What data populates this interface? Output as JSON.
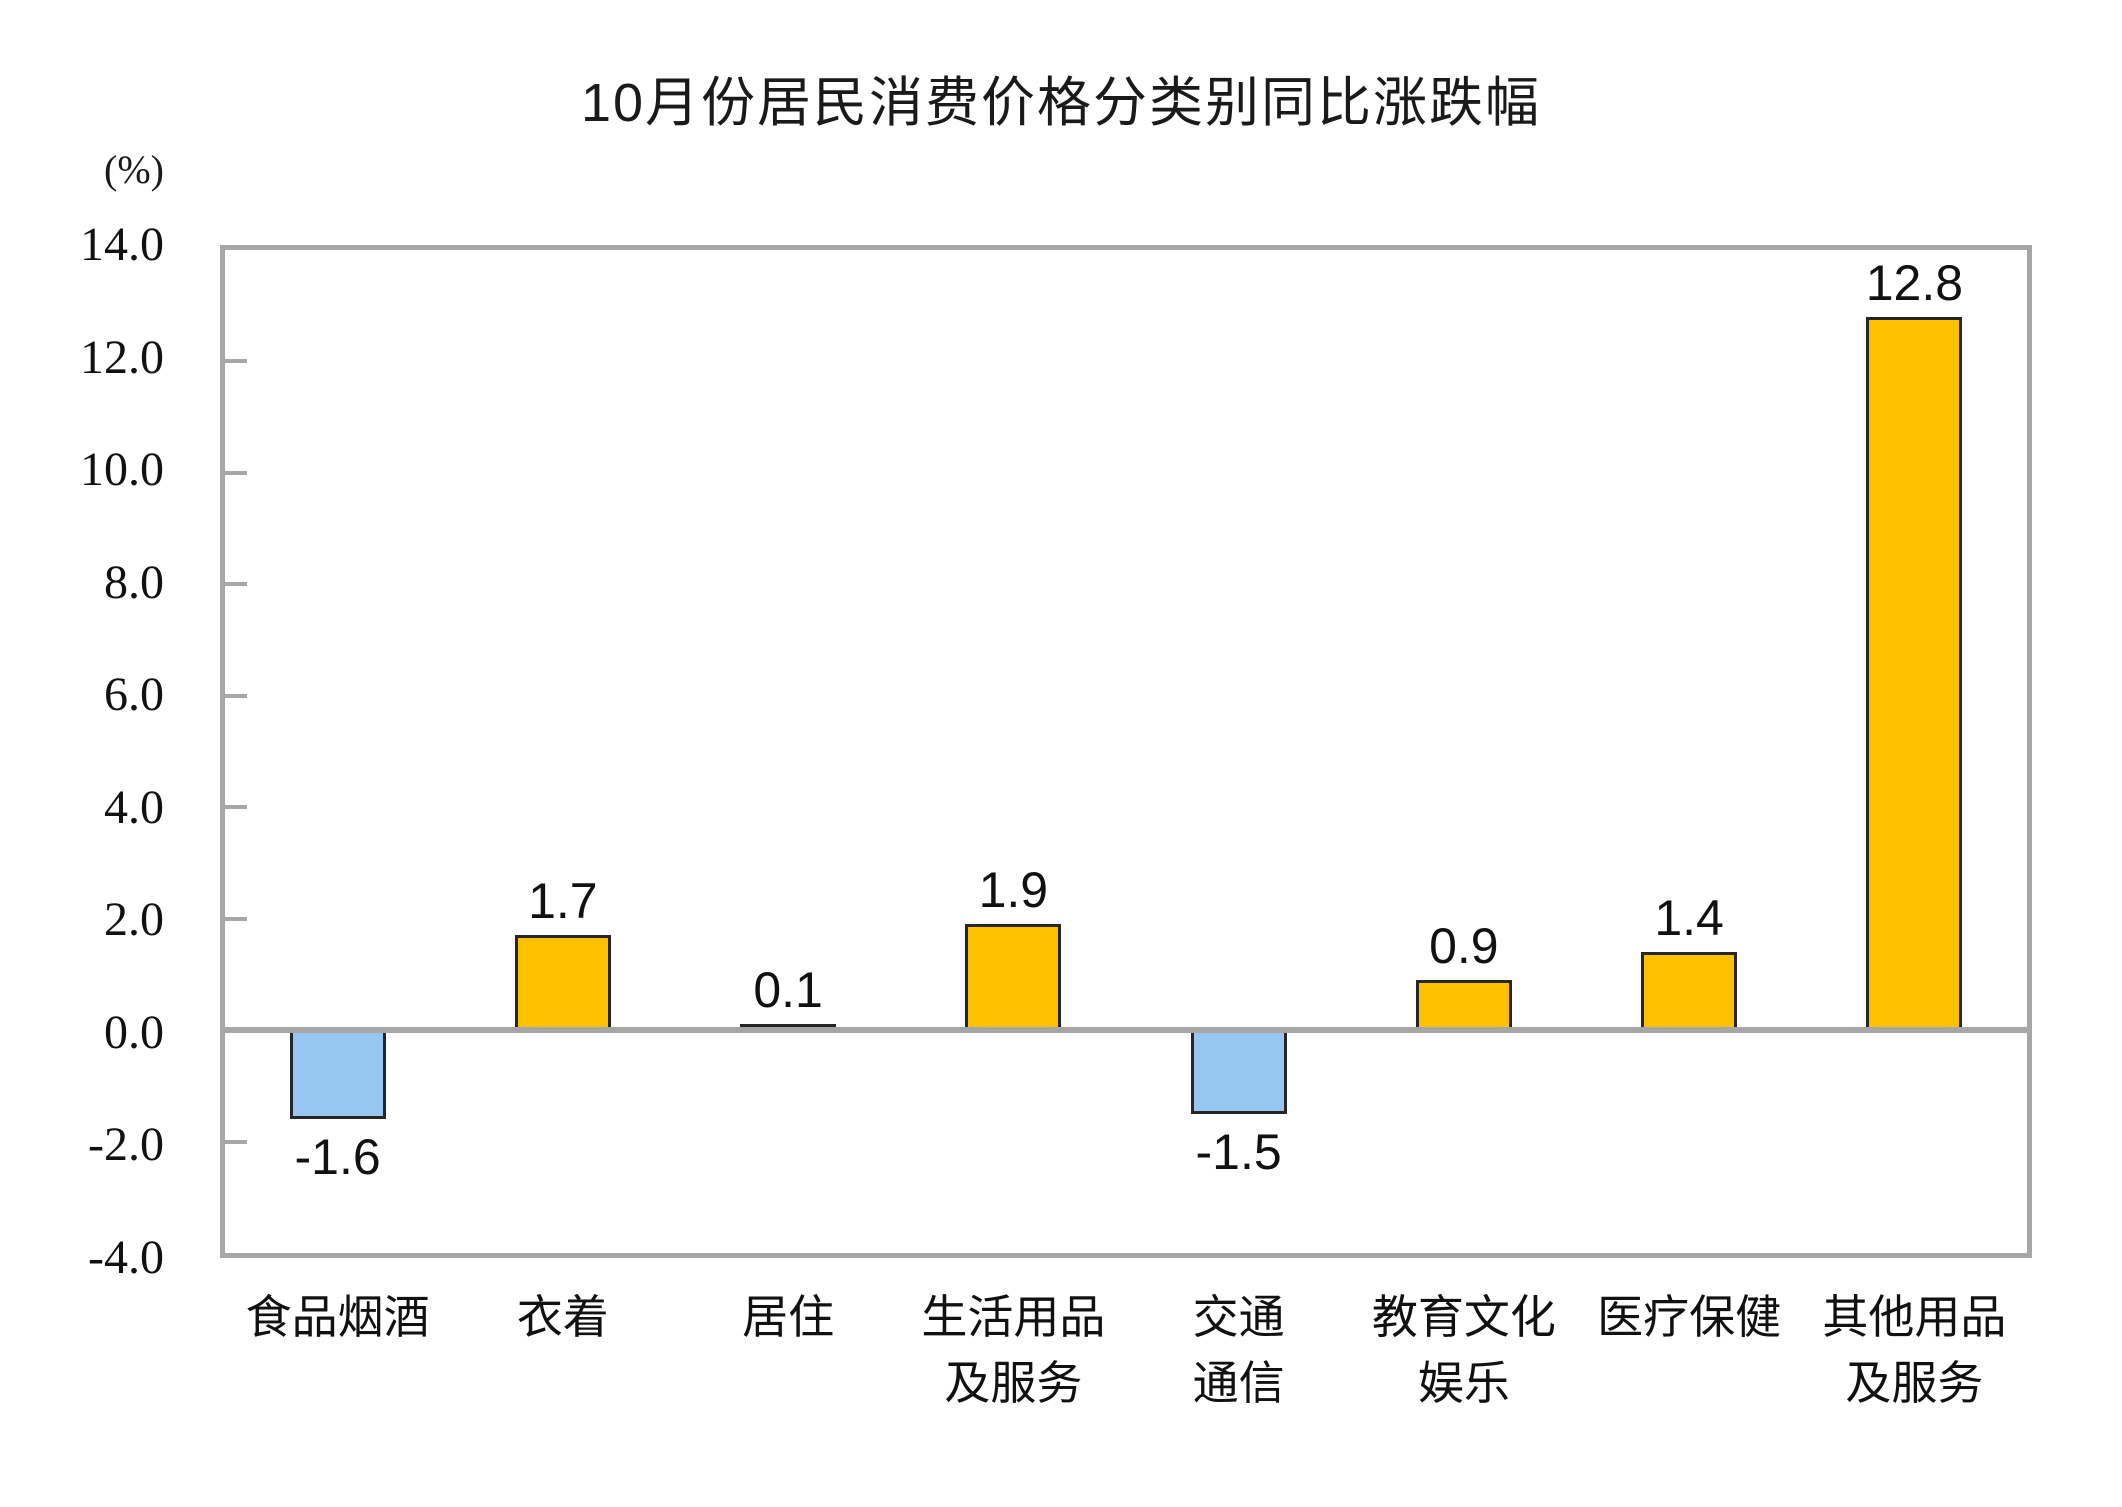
{
  "chart_data": {
    "type": "bar",
    "title": "10月份居民消费价格分类别同比涨跌幅",
    "unit_label": "(%)",
    "categories": [
      "食品烟酒",
      "衣着",
      "居住",
      "生活用品及服务",
      "交通通信",
      "教育文化娱乐",
      "医疗保健",
      "其他用品及服务"
    ],
    "category_lines": [
      [
        "食品烟酒"
      ],
      [
        "衣着"
      ],
      [
        "居住"
      ],
      [
        "生活用品",
        "及服务"
      ],
      [
        "交通",
        "通信"
      ],
      [
        "教育文化",
        "娱乐"
      ],
      [
        "医疗保健"
      ],
      [
        "其他用品",
        "及服务"
      ]
    ],
    "values": [
      -1.6,
      1.7,
      0.1,
      1.9,
      -1.5,
      0.9,
      1.4,
      12.8
    ],
    "value_labels": [
      "-1.6",
      "1.7",
      "0.1",
      "1.9",
      "-1.5",
      "0.9",
      "1.4",
      "12.8"
    ],
    "ylim": [
      -4,
      14
    ],
    "ytick_values": [
      14,
      12,
      10,
      8,
      6,
      4,
      2,
      0,
      -2,
      -4
    ],
    "ytick_labels": [
      "14.0",
      "12.0",
      "10.0",
      "8.0",
      "6.0",
      "4.0",
      "2.0",
      "0.0",
      "-2.0",
      "-4.0"
    ],
    "grid": false,
    "legend": "none",
    "colors": {
      "positive_bar": "#FFC000",
      "negative_bar": "#97C6F2",
      "bar_border": "#262626",
      "axis_frame": "#A6A6A6",
      "zero_line": "#A6A6A6",
      "text": "#111111"
    }
  }
}
